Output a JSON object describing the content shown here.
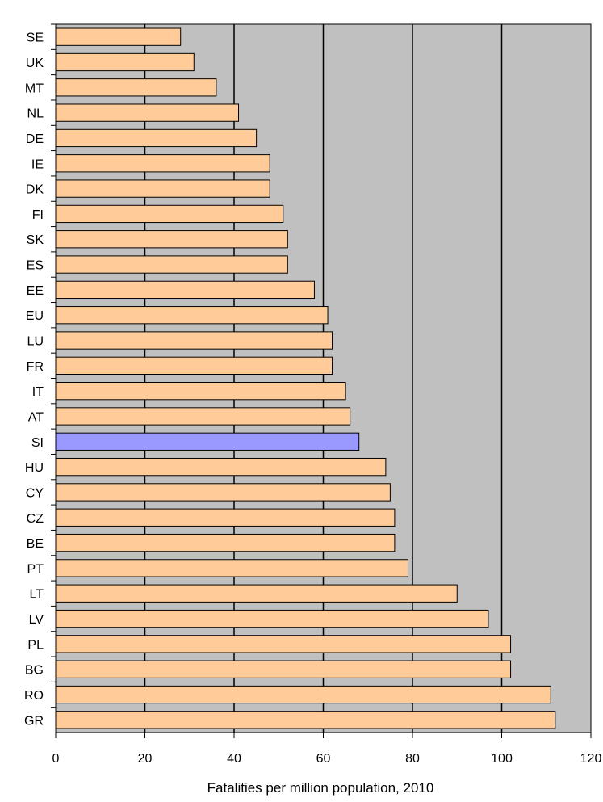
{
  "chart_data": {
    "type": "bar",
    "orientation": "horizontal",
    "xlabel": "Fatalities per million population, 2010",
    "ylabel": "",
    "xlim": [
      0,
      120
    ],
    "xticks": [
      0,
      20,
      40,
      60,
      80,
      100,
      120
    ],
    "grid": "vertical lines at major ticks",
    "plot_background": "#c0c0c0",
    "categories": [
      "SE",
      "UK",
      "MT",
      "NL",
      "DE",
      "IE",
      "DK",
      "FI",
      "SK",
      "ES",
      "EE",
      "EU",
      "LU",
      "FR",
      "IT",
      "AT",
      "SI",
      "HU",
      "CY",
      "CZ",
      "BE",
      "PT",
      "LT",
      "LV",
      "PL",
      "BG",
      "RO",
      "GR"
    ],
    "values": [
      28,
      31,
      36,
      41,
      45,
      48,
      48,
      51,
      52,
      52,
      58,
      61,
      62,
      62,
      65,
      66,
      68,
      74,
      75,
      76,
      76,
      79,
      90,
      97,
      102,
      102,
      111,
      112
    ],
    "colors": {
      "default_bar": "#ffcc99",
      "highlight_bar": "#9999ff",
      "highlight_category": "SI",
      "bar_stroke": "#000000"
    }
  }
}
